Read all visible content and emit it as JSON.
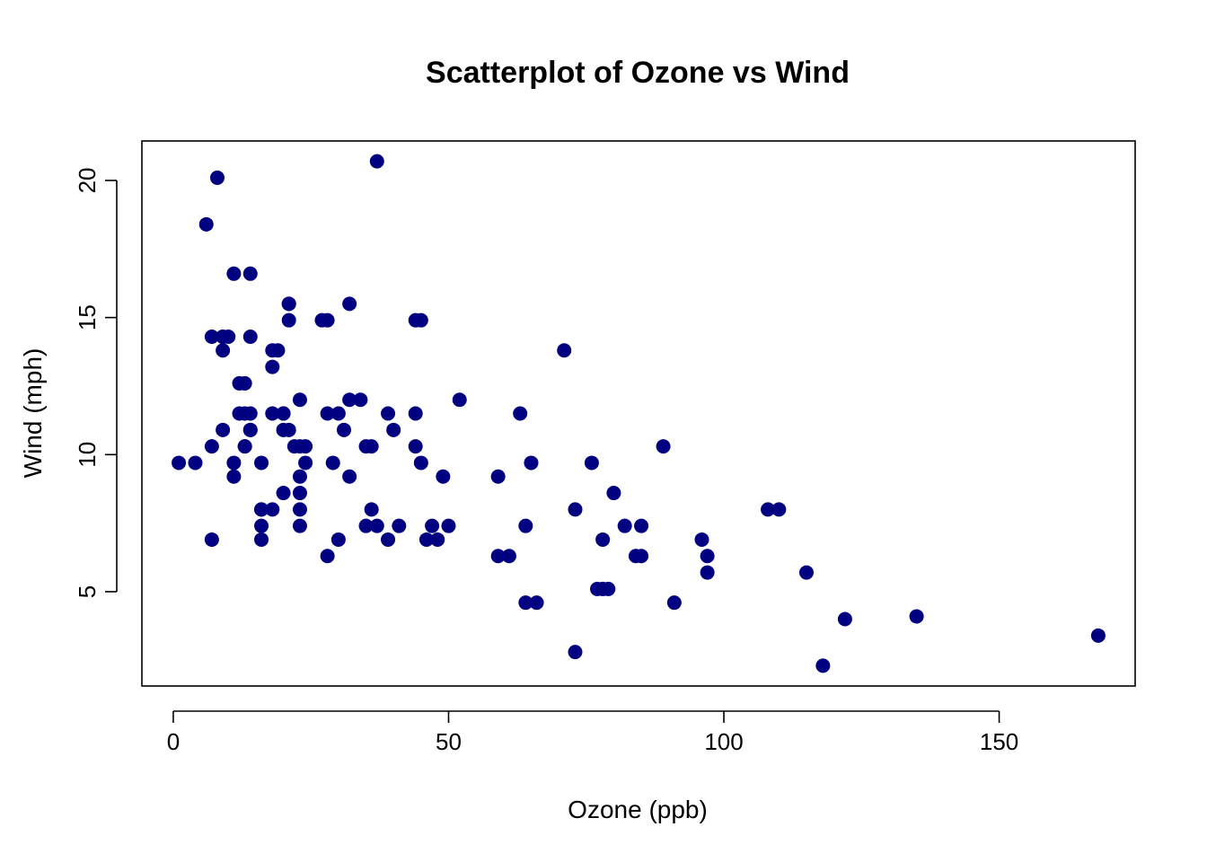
{
  "chart_data": {
    "type": "scatter",
    "title": "Scatterplot of Ozone vs Wind",
    "xlabel": "Ozone (ppb)",
    "ylabel": "Wind (mph)",
    "xlim": [
      -5.7,
      174.7
    ],
    "ylim": [
      1.56,
      21.44
    ],
    "xticks": [
      0,
      50,
      100,
      150
    ],
    "yticks": [
      5,
      10,
      15,
      20
    ],
    "xtick_labels": [
      "0",
      "50",
      "100",
      "150"
    ],
    "ytick_labels": [
      "5",
      "10",
      "15",
      "20"
    ],
    "grid": false,
    "point_color": "#000080",
    "series": [
      {
        "points": [
          [
            41,
            7.4
          ],
          [
            36,
            8.0
          ],
          [
            12,
            12.6
          ],
          [
            18,
            11.5
          ],
          [
            28,
            14.9
          ],
          [
            23,
            8.6
          ],
          [
            19,
            13.8
          ],
          [
            8,
            20.1
          ],
          [
            7,
            6.9
          ],
          [
            16,
            9.7
          ],
          [
            11,
            9.2
          ],
          [
            14,
            10.9
          ],
          [
            18,
            13.2
          ],
          [
            14,
            11.5
          ],
          [
            34,
            12.0
          ],
          [
            6,
            18.4
          ],
          [
            30,
            11.5
          ],
          [
            11,
            9.7
          ],
          [
            1,
            9.7
          ],
          [
            11,
            16.6
          ],
          [
            4,
            9.7
          ],
          [
            32,
            12.0
          ],
          [
            23,
            12.0
          ],
          [
            45,
            14.9
          ],
          [
            115,
            5.7
          ],
          [
            37,
            20.7
          ],
          [
            29,
            9.7
          ],
          [
            71,
            13.8
          ],
          [
            39,
            11.5
          ],
          [
            23,
            8.0
          ],
          [
            21,
            14.9
          ],
          [
            37,
            7.4
          ],
          [
            20,
            8.6
          ],
          [
            12,
            11.5
          ],
          [
            13,
            10.3
          ],
          [
            135,
            4.1
          ],
          [
            49,
            9.2
          ],
          [
            32,
            9.2
          ],
          [
            64,
            4.6
          ],
          [
            40,
            10.9
          ],
          [
            77,
            5.1
          ],
          [
            97,
            6.3
          ],
          [
            97,
            5.7
          ],
          [
            85,
            7.4
          ],
          [
            10,
            14.3
          ],
          [
            27,
            14.9
          ],
          [
            7,
            14.3
          ],
          [
            48,
            6.9
          ],
          [
            35,
            10.3
          ],
          [
            61,
            6.3
          ],
          [
            79,
            5.1
          ],
          [
            63,
            11.5
          ],
          [
            16,
            6.9
          ],
          [
            80,
            8.6
          ],
          [
            108,
            8.0
          ],
          [
            20,
            11.5
          ],
          [
            52,
            12.0
          ],
          [
            82,
            7.4
          ],
          [
            50,
            7.4
          ],
          [
            64,
            7.4
          ],
          [
            59,
            9.2
          ],
          [
            39,
            6.9
          ],
          [
            9,
            13.8
          ],
          [
            16,
            7.4
          ],
          [
            78,
            6.9
          ],
          [
            35,
            7.4
          ],
          [
            66,
            4.6
          ],
          [
            122,
            4.0
          ],
          [
            89,
            10.3
          ],
          [
            110,
            8.0
          ],
          [
            44,
            11.5
          ],
          [
            28,
            11.5
          ],
          [
            65,
            9.7
          ],
          [
            22,
            10.3
          ],
          [
            59,
            6.3
          ],
          [
            23,
            7.4
          ],
          [
            31,
            10.9
          ],
          [
            44,
            10.3
          ],
          [
            21,
            15.5
          ],
          [
            9,
            14.3
          ],
          [
            45,
            9.7
          ],
          [
            168,
            3.4
          ],
          [
            73,
            8.0
          ],
          [
            76,
            9.7
          ],
          [
            118,
            2.3
          ],
          [
            84,
            6.3
          ],
          [
            85,
            6.3
          ],
          [
            96,
            6.9
          ],
          [
            78,
            5.1
          ],
          [
            73,
            2.8
          ],
          [
            91,
            4.6
          ],
          [
            47,
            7.4
          ],
          [
            32,
            15.5
          ],
          [
            20,
            10.9
          ],
          [
            23,
            10.3
          ],
          [
            21,
            10.9
          ],
          [
            24,
            9.7
          ],
          [
            44,
            14.9
          ],
          [
            21,
            15.5
          ],
          [
            28,
            6.3
          ],
          [
            9,
            10.9
          ],
          [
            13,
            11.5
          ],
          [
            46,
            6.9
          ],
          [
            18,
            13.8
          ],
          [
            13,
            10.3
          ],
          [
            24,
            10.3
          ],
          [
            16,
            8.0
          ],
          [
            13,
            12.6
          ],
          [
            23,
            9.2
          ],
          [
            36,
            10.3
          ],
          [
            7,
            10.3
          ],
          [
            14,
            16.6
          ],
          [
            30,
            6.9
          ],
          [
            14,
            14.3
          ],
          [
            18,
            8.0
          ],
          [
            20,
            11.5
          ],
          [
            14,
            10.9
          ],
          [
            16,
            8.0
          ],
          [
            9,
            14.3
          ]
        ]
      }
    ]
  }
}
